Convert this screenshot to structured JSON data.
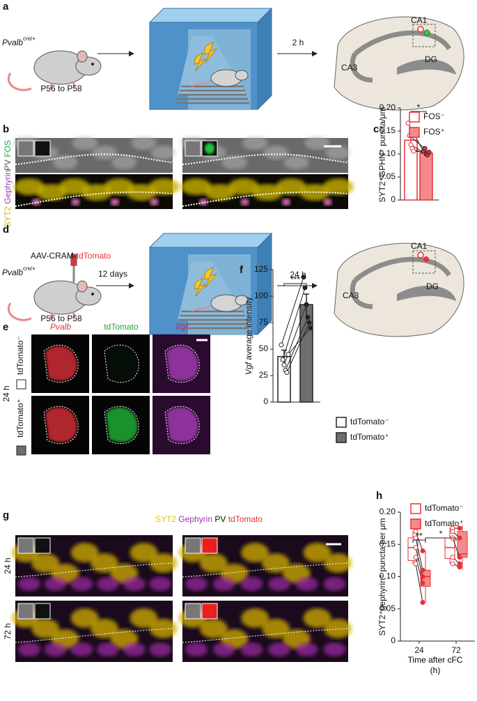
{
  "panel_a": {
    "letter": "a",
    "genotype": "Pvalb",
    "genotype_sup": "cre/+",
    "age": "P56 to P58",
    "delay": "2 h",
    "regions": [
      "CA1",
      "CA3",
      "DG"
    ]
  },
  "panel_b": {
    "letter": "b",
    "channels_top": [
      "PV",
      "FOS"
    ],
    "channels_bottom": [
      "SYT2",
      "Gephyrin"
    ]
  },
  "panel_c": {
    "letter": "c",
    "type": "bar",
    "ylabel": "SYT2⁺GPHN⁺ puncta/μm",
    "ylim": [
      0,
      0.2
    ],
    "yticks": [
      0,
      0.05,
      {
        "value": 0.1,
        "label": "0.10"
      },
      {
        "value": 0.15,
        "label": "0.15"
      },
      {
        "value": 0.2,
        "label": "0.20"
      }
    ],
    "series": [
      {
        "name": "FOS⁻",
        "color": "#e8303a",
        "fill": "#ffffff",
        "value": 0.13,
        "error": 0.011,
        "points": [
          0.167,
          0.14,
          0.12,
          0.112,
          0.106
        ]
      },
      {
        "name": "FOS⁺",
        "color": "#e8303a",
        "fill": "#f48b8b",
        "value": 0.102,
        "error": 0.004,
        "points": [
          0.106,
          0.112,
          0.1,
          0.098,
          0.104
        ]
      }
    ],
    "significance": "*"
  },
  "panel_d": {
    "letter": "d",
    "virus": "AAV-CRAM-",
    "virus_reporter": "tdTomato",
    "genotype": "Pvalb",
    "genotype_sup": "cre/+",
    "age": "P56 to P58",
    "delay_1": "12 days",
    "delay_2": "24 h",
    "regions": [
      "CA1",
      "CA3",
      "DG"
    ]
  },
  "panel_e": {
    "letter": "e",
    "columns": [
      "Pvalb",
      "tdTomato",
      "Vgf"
    ],
    "rows": [
      "tdTomato⁻",
      "tdTomato⁺"
    ],
    "time": "24 h"
  },
  "panel_f": {
    "letter": "f",
    "type": "bar",
    "ylabel_gene": "Vgf",
    "ylabel": "average intensity",
    "ylim": [
      0,
      125
    ],
    "yticks": [
      0,
      25,
      50,
      75,
      100,
      125
    ],
    "series": [
      {
        "name": "tdTomato⁻",
        "color": "#222222",
        "fill": "#ffffff",
        "value": 43,
        "error": 6,
        "points": [
          54,
          40,
          35,
          30,
          28,
          45
        ]
      },
      {
        "name": "tdTomato⁺",
        "color": "#222222",
        "fill": "#6e6e6e",
        "value": 92,
        "error": 10,
        "points": [
          118,
          108,
          92,
          80,
          75,
          70
        ]
      }
    ],
    "significance": "***"
  },
  "panel_g": {
    "letter": "g",
    "channels": [
      "SYT2",
      "Gephyrin",
      "PV",
      "tdTomato"
    ],
    "rows": [
      "24 h",
      "72 h"
    ]
  },
  "panel_h": {
    "letter": "h",
    "type": "box",
    "ylabel": "SYT2⁺gephyrin⁺ puncta per μm",
    "xlabel": "Time after cFC (h)",
    "categories": [
      "24",
      "72"
    ],
    "ylim": [
      0,
      0.2
    ],
    "yticks": [
      0,
      0.05,
      {
        "value": 0.1,
        "label": "0.10"
      },
      {
        "value": 0.15,
        "label": "0.15"
      },
      {
        "value": 0.2,
        "label": "0.20"
      }
    ],
    "series": [
      {
        "name": "tdTomato⁻",
        "color": "#e8303a",
        "fill": "#ffffff",
        "boxes": [
          [
            0.12,
            0.125,
            0.145,
            0.16,
            0.17
          ],
          [
            0.12,
            0.128,
            0.145,
            0.16,
            0.175
          ]
        ],
        "points": [
          [
            0.17,
            0.16,
            0.145,
            0.13,
            0.12
          ],
          [
            0.175,
            0.17,
            0.16,
            0.13,
            0.12
          ]
        ]
      },
      {
        "name": "tdTomato⁺",
        "color": "#e8303a",
        "fill": "#f48b8b",
        "boxes": [
          [
            0.06,
            0.085,
            0.1,
            0.11,
            0.14
          ],
          [
            0.11,
            0.13,
            0.135,
            0.17,
            0.18
          ]
        ],
        "points": [
          [
            0.14,
            0.11,
            0.1,
            0.09,
            0.06
          ],
          [
            0.175,
            0.16,
            0.13,
            0.12,
            0.115
          ]
        ]
      }
    ],
    "significance": [
      "**",
      "*"
    ]
  }
}
